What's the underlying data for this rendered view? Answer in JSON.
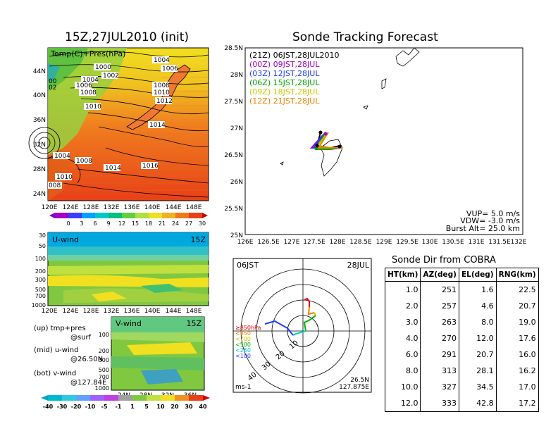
{
  "left_title": "15Z,27JUL2010 (init)",
  "right_title": "Sonde Tracking Forecast",
  "map": {
    "label": "Temp(C)+Pres(hPa)",
    "lat_labels": [
      "44N",
      "40N",
      "36N",
      "32N",
      "28N",
      "24N"
    ],
    "lon_labels": [
      "120E",
      "124E",
      "128E",
      "132E",
      "136E",
      "140E",
      "144E",
      "148E"
    ],
    "isobar_labels": [
      "1000",
      "1002",
      "1004",
      "1004",
      "1006",
      "1006",
      "1008",
      "1008",
      "1010",
      "1010",
      "1012",
      "1014",
      "1016",
      "1004",
      "1008",
      "1010",
      "1014",
      "008",
      "00",
      "02"
    ],
    "colorbar": [
      "0",
      "3",
      "6",
      "9",
      "12",
      "15",
      "18",
      "21",
      "24",
      "27",
      "30"
    ]
  },
  "uwind": {
    "label": "U-wind",
    "time": "15Z",
    "y_labels": [
      "30",
      "50",
      "100",
      "200",
      "300",
      "500",
      "700",
      "1000"
    ],
    "x_labels": [
      "120E",
      "124E",
      "128E",
      "132E",
      "136E",
      "140E",
      "144E",
      "148E"
    ]
  },
  "vwind": {
    "label": "V-wind",
    "time": "15Z",
    "y_labels": [
      "100",
      "200",
      "300",
      "500",
      "700",
      "1000"
    ],
    "x_labels": [
      "24N",
      "28N",
      "32N",
      "36N"
    ]
  },
  "notes": {
    "up": "(up) tmp+pres",
    "up2": "@surf",
    "mid": "(mid) u-wind",
    "mid2": "@26.50N",
    "bot": "(bot) v-wind",
    "bot2": "@127.84E"
  },
  "wind_colorbar": [
    "-40",
    "-30",
    "-20",
    "-10",
    "-5",
    "-1",
    "1",
    "5",
    "10",
    "20",
    "30",
    "40"
  ],
  "track": {
    "lat_labels": [
      "28.5N",
      "28N",
      "27.5N",
      "27N",
      "26.5N",
      "26N",
      "25.5N",
      "25N"
    ],
    "lon_labels": [
      "126E",
      "126.5E",
      "127E",
      "127.5E",
      "128E",
      "128.5E",
      "129E",
      "129.5E",
      "130E",
      "130.5E",
      "131E",
      "131.5E",
      "132E"
    ],
    "legend": [
      {
        "text": "(21Z)  06JST,28JUL2010",
        "color": "#000000"
      },
      {
        "text": "(00Z)  09JST,28JUL",
        "color": "#a000c8"
      },
      {
        "text": "(03Z)  12JST,28JUL",
        "color": "#1e3cff"
      },
      {
        "text": "(06Z)  15JST,28JUL",
        "color": "#00a000"
      },
      {
        "text": "(09Z)  18JST,28JUL",
        "color": "#c8c800"
      },
      {
        "text": "(12Z)  21JST,28JUL",
        "color": "#f08000"
      }
    ],
    "vup": "VUP=  5.0  m/s",
    "vdw": "VDW= -3.0  m/s",
    "burst": "Burst Alt=  25.0  km"
  },
  "hodograph": {
    "time": "06JST",
    "date": "28JUL",
    "lat": "26.5N",
    "lon": "127.875E",
    "unit": "ms-1",
    "ring_labels": [
      "10",
      "20",
      "30",
      "40"
    ],
    "level_legend": [
      {
        "text": "≥850hPa",
        "color": "#e00000"
      },
      {
        "text": "<850",
        "color": "#f08000"
      },
      {
        "text": "<700",
        "color": "#c8c800"
      },
      {
        "text": "<500",
        "color": "#00b000"
      },
      {
        "text": "<250",
        "color": "#00c8c8"
      },
      {
        "text": "<100",
        "color": "#1e3cff"
      }
    ]
  },
  "table": {
    "title": "Sonde Dir from COBRA",
    "headers": [
      "HT(km)",
      "AZ(deg)",
      "EL(deg)",
      "RNG(km)"
    ],
    "rows": [
      [
        "1.0",
        "251",
        "1.6",
        "22.5"
      ],
      [
        "2.0",
        "257",
        "4.6",
        "20.7"
      ],
      [
        "3.0",
        "263",
        "8.0",
        "19.0"
      ],
      [
        "4.0",
        "270",
        "12.0",
        "17.6"
      ],
      [
        "6.0",
        "291",
        "20.7",
        "16.0"
      ],
      [
        "8.0",
        "313",
        "28.1",
        "16.2"
      ],
      [
        "10.0",
        "327",
        "34.5",
        "17.0"
      ],
      [
        "12.0",
        "333",
        "42.8",
        "17.2"
      ]
    ]
  },
  "chart_data": {
    "type": "table",
    "title": "Sonde Dir from COBRA",
    "columns": [
      "HT(km)",
      "AZ(deg)",
      "EL(deg)",
      "RNG(km)"
    ],
    "rows": [
      [
        1.0,
        251,
        1.6,
        22.5
      ],
      [
        2.0,
        257,
        4.6,
        20.7
      ],
      [
        3.0,
        263,
        8.0,
        19.0
      ],
      [
        4.0,
        270,
        12.0,
        17.6
      ],
      [
        6.0,
        291,
        20.7,
        16.0
      ],
      [
        8.0,
        313,
        28.1,
        16.2
      ],
      [
        10.0,
        327,
        34.5,
        17.0
      ],
      [
        12.0,
        333,
        42.8,
        17.2
      ]
    ]
  }
}
